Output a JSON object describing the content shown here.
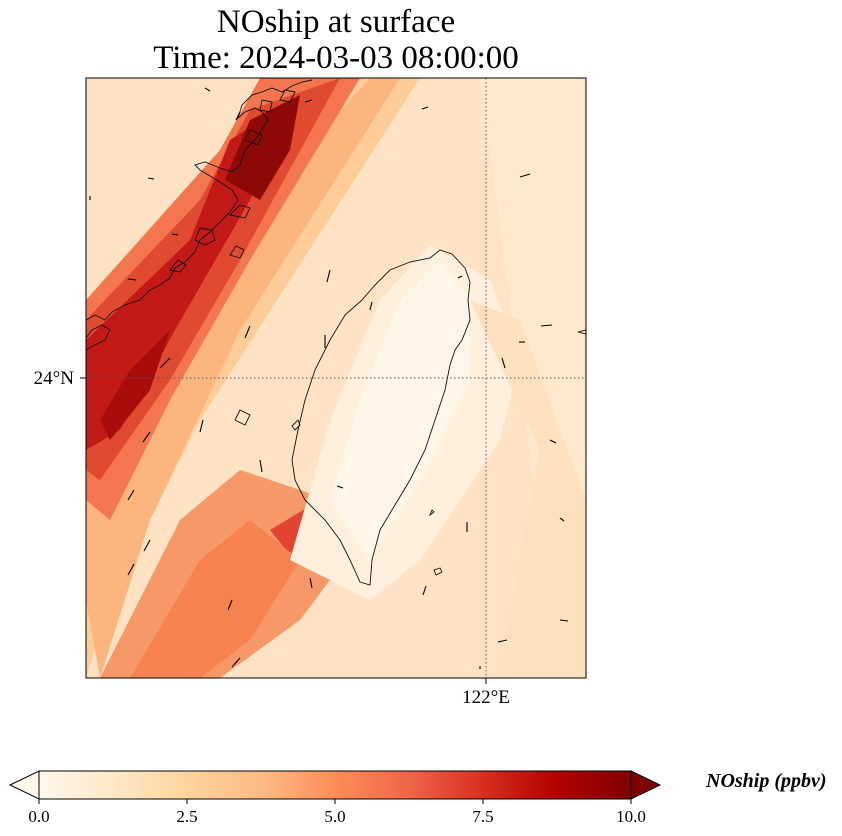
{
  "title": {
    "line1": "NOship at surface",
    "line2": "Time: 2024-03-03 08:00:00"
  },
  "map": {
    "region": "Taiwan Strait",
    "lat_ticks": [
      "24°N"
    ],
    "lon_ticks": [
      "122°E"
    ],
    "gridline_style": "dotted",
    "features": [
      "coastline",
      "wind vectors",
      "shaded NOship concentration"
    ]
  },
  "colorbar": {
    "label": "NOship (ppbv)",
    "colormap": "OrRd",
    "min": 0.0,
    "max": 10.0,
    "extend": "both",
    "ticks": [
      "0.0",
      "2.5",
      "5.0",
      "7.5",
      "10.0"
    ],
    "colors": [
      "#fff7ec",
      "#fee8c8",
      "#fdd49e",
      "#fdbb84",
      "#fc8d59",
      "#ef6548",
      "#d7301f",
      "#b30000",
      "#7f0000"
    ]
  }
}
